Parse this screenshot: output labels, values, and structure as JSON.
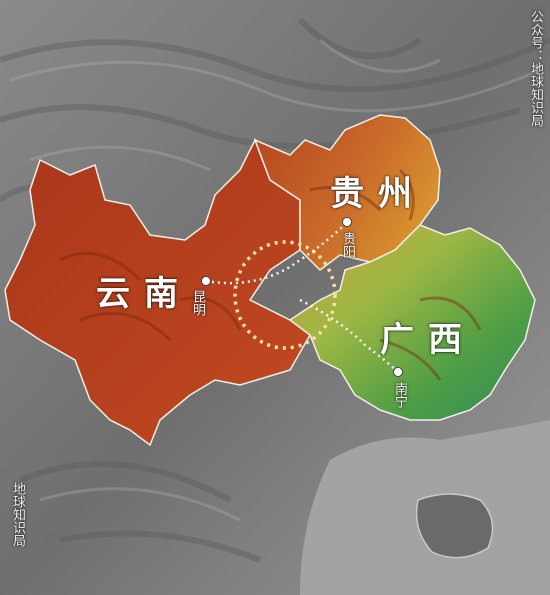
{
  "provinces": [
    {
      "name": "云南",
      "color": "#b8401e"
    },
    {
      "name": "贵州",
      "color": "#c8652a"
    },
    {
      "name": "广西",
      "color": "#5aa84a"
    }
  ],
  "cities": [
    {
      "name": "昆明",
      "province": "云南"
    },
    {
      "name": "贵阳",
      "province": "贵州"
    },
    {
      "name": "南宁",
      "province": "广西"
    }
  ],
  "watermarks": [
    "公众号：地球知识局",
    "地球知识局"
  ],
  "colors": {
    "terrain_base": "#7d7d7d",
    "yunnan": "#b8401e",
    "guizhou": "#c8652a",
    "guangxi": "#5aa84a",
    "highlight_circle": "#f3e2a0",
    "route_line": "#ffffff",
    "sea": "#9a9a9a"
  },
  "icons": [
    "city-dot-icon",
    "dotted-circle-icon",
    "dotted-route-icon"
  ]
}
